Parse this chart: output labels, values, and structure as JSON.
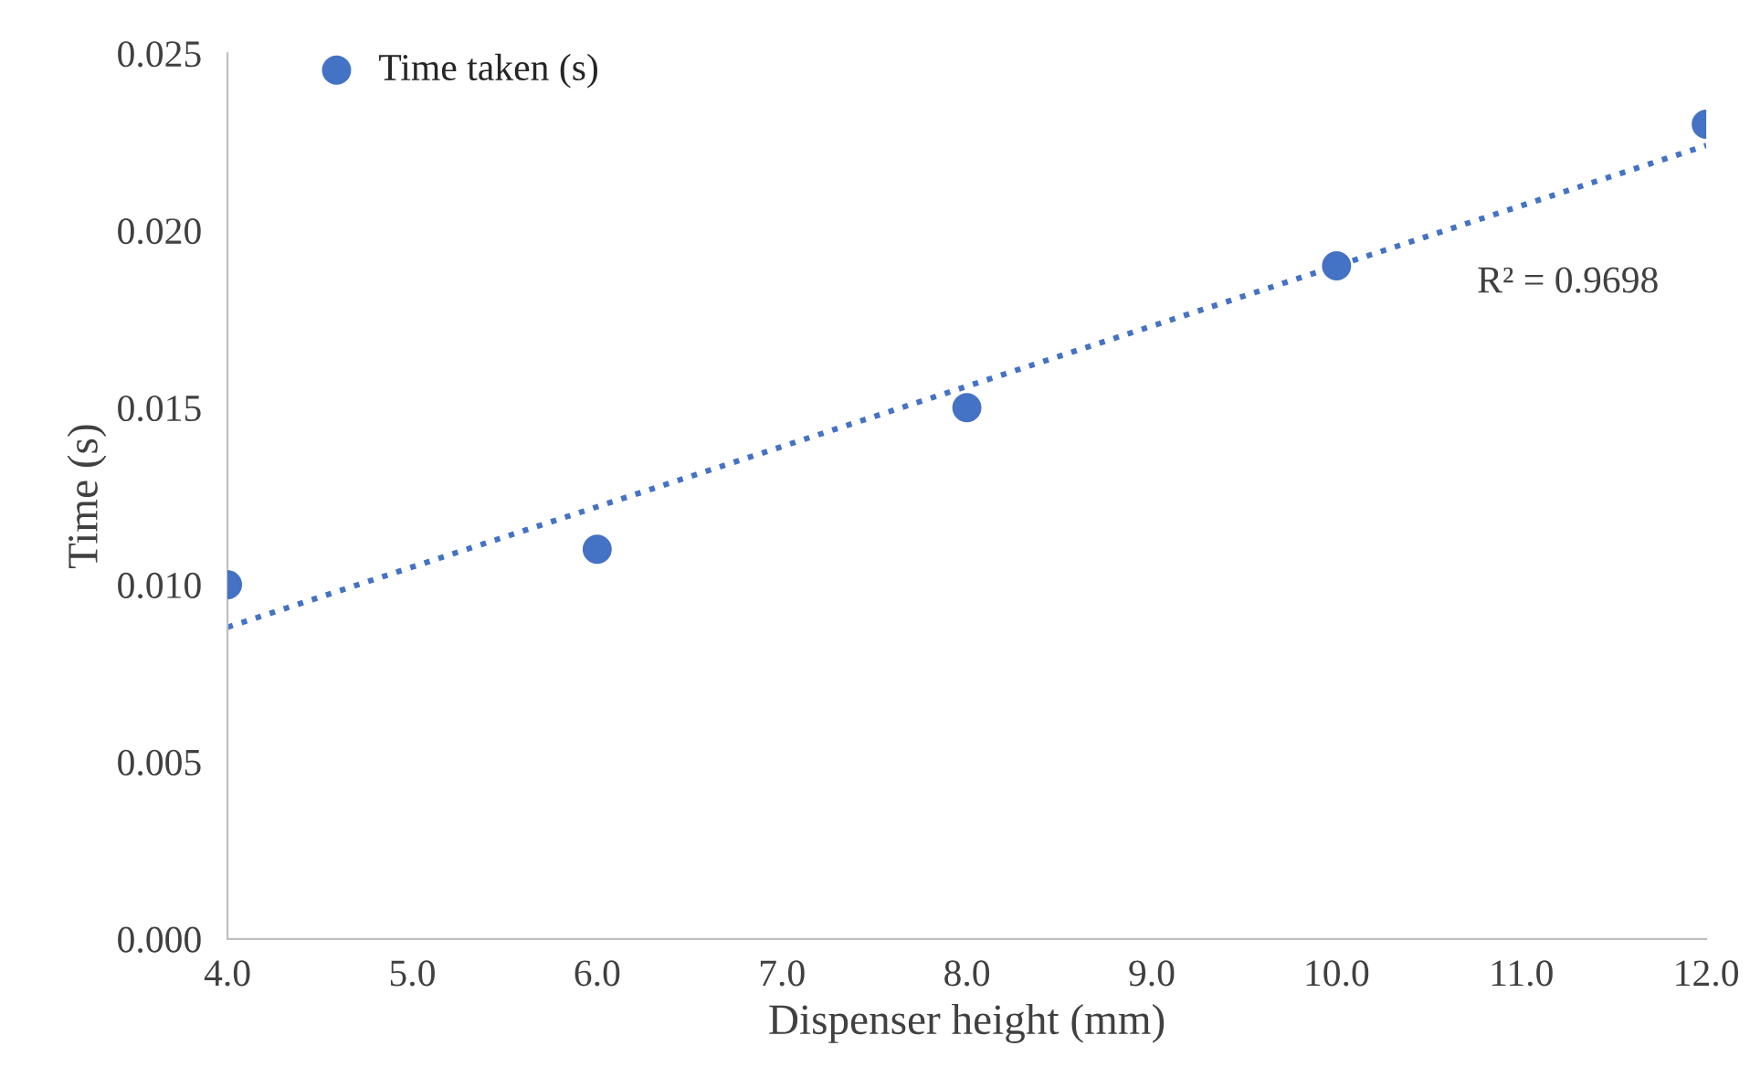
{
  "chart_data": {
    "type": "scatter",
    "xlabel": "Dispenser height (mm)",
    "ylabel": "Time (s)",
    "x": [
      4,
      6,
      8,
      10,
      12
    ],
    "series": [
      {
        "name": "Time taken (s)",
        "color": "#4472c4",
        "marker": "circle",
        "values": [
          0.01,
          0.011,
          0.015,
          0.019,
          0.023
        ]
      },
      {
        "type": "line",
        "color": "#4472c4",
        "line_style": "dotted",
        "marker": "none",
        "x": [
          4,
          12
        ],
        "values": [
          0.0088,
          0.0224
        ]
      }
    ],
    "annotations": [
      "R² = 0.9698"
    ],
    "xlim": [
      4,
      12
    ],
    "xticks": [
      {
        "value": 4,
        "label": "4.0"
      },
      {
        "value": 5,
        "label": "5.0"
      },
      {
        "value": 6,
        "label": "6.0"
      },
      {
        "value": 7,
        "label": "7.0"
      },
      {
        "value": 8,
        "label": "8.0"
      },
      {
        "value": 9,
        "label": "9.0"
      },
      {
        "value": 10,
        "label": "10.0"
      },
      {
        "value": 11,
        "label": "11.0"
      },
      {
        "value": 12,
        "label": "12.0"
      }
    ],
    "ylim": [
      0,
      0.025
    ],
    "yticks": [
      {
        "value": 0,
        "label": "0.000"
      },
      {
        "value": 0.005,
        "label": "0.005"
      },
      {
        "value": 0.01,
        "label": "0.010"
      },
      {
        "value": 0.015,
        "label": "0.015"
      },
      {
        "value": 0.02,
        "label": "0.020"
      },
      {
        "value": 0.025,
        "label": "0.025"
      }
    ],
    "grid": false,
    "legend": "top left"
  }
}
